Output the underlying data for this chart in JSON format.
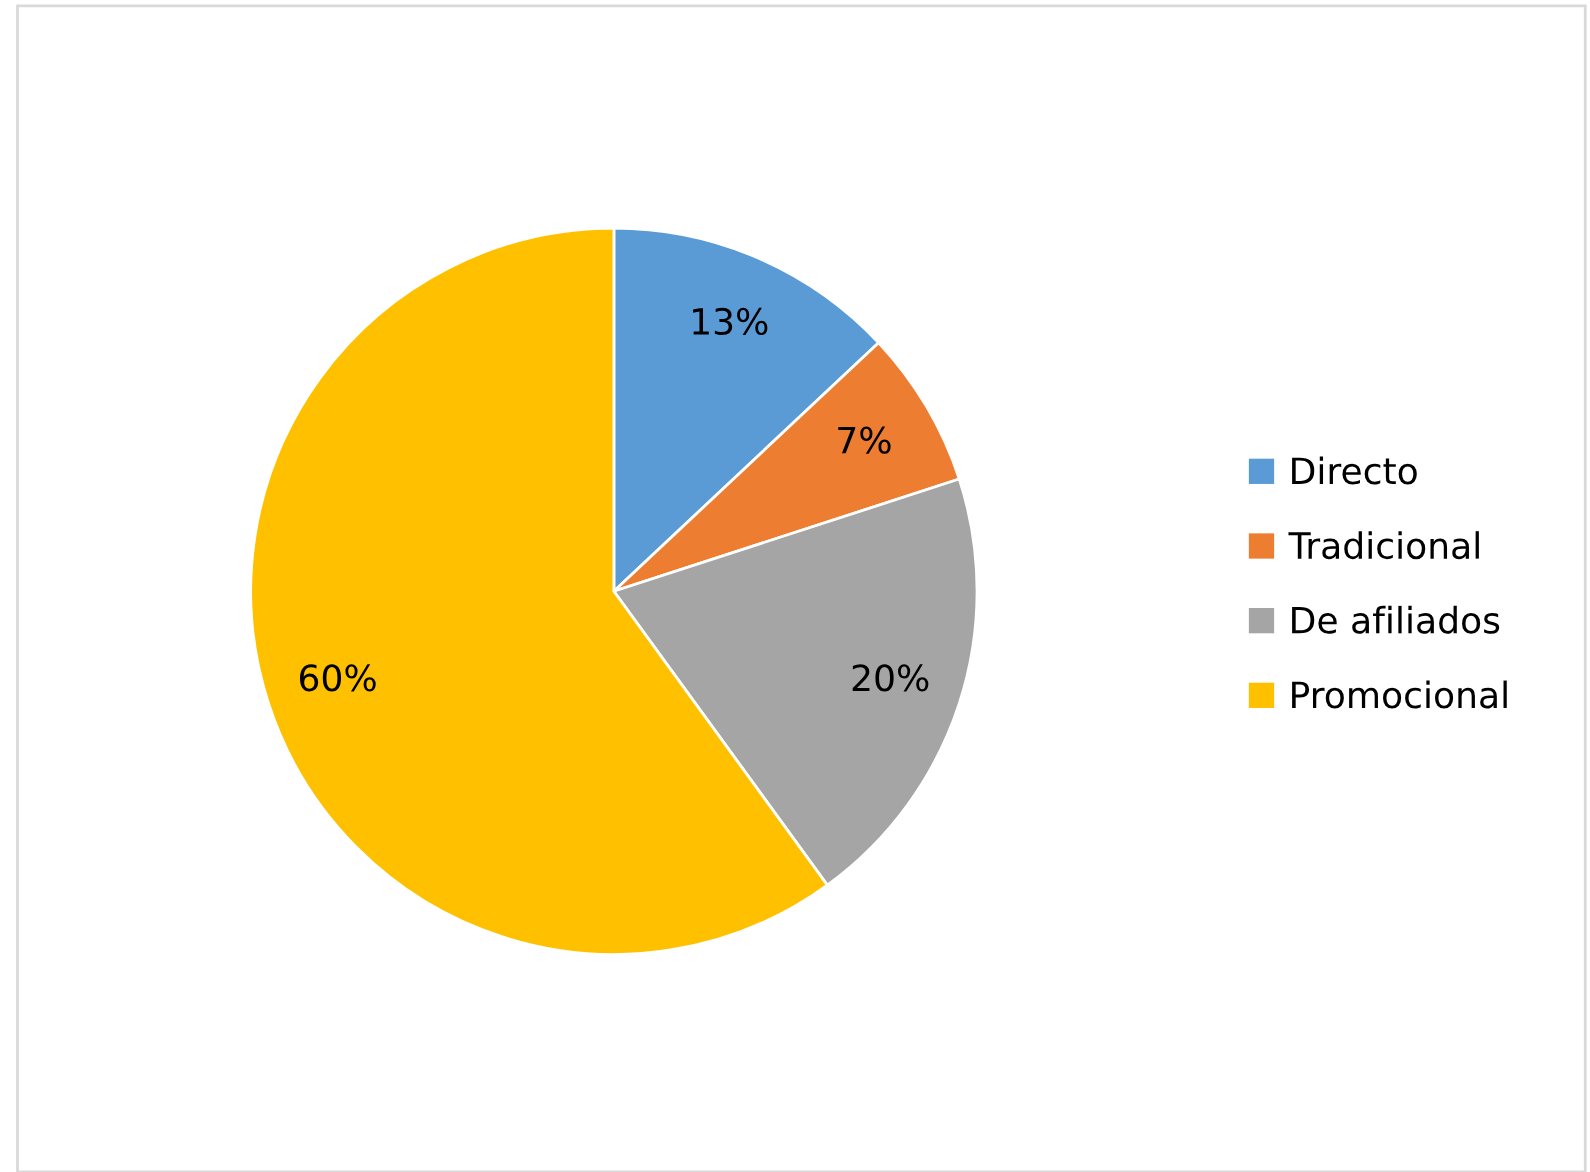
{
  "chart_data": {
    "type": "pie",
    "categories": [
      "Directo",
      "Tradicional",
      "De afiliados",
      "Promocional"
    ],
    "values": [
      13,
      7,
      20,
      60
    ],
    "colors": [
      "#5b9bd5",
      "#ed7d31",
      "#a5a5a5",
      "#ffc000"
    ],
    "value_labels": [
      "13%",
      "7%",
      "20%",
      "60%"
    ],
    "legend": "right"
  }
}
